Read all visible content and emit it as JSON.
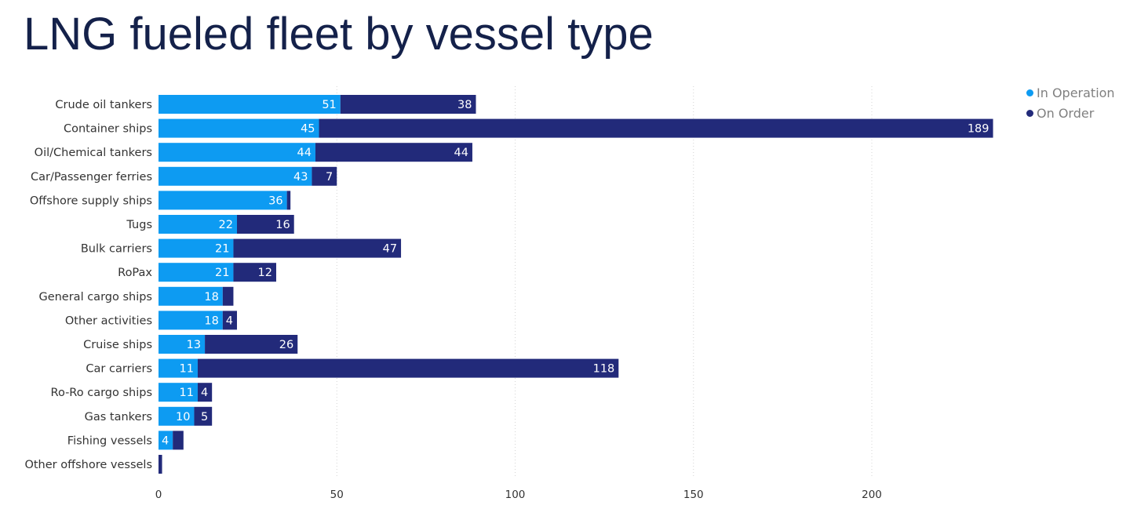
{
  "title": "LNG fueled fleet by vessel type",
  "colors": {
    "in_operation": "#0d9bf2",
    "on_order": "#222a7a",
    "grid": "#d4d4d4",
    "title": "#14214a"
  },
  "legend": [
    {
      "label": "In Operation",
      "color": "#0d9bf2"
    },
    {
      "label": "On Order",
      "color": "#222a7a"
    }
  ],
  "chart_data": {
    "type": "bar",
    "orientation": "horizontal",
    "stacked": true,
    "title": "LNG fueled fleet by vessel type",
    "xlabel": "",
    "ylabel": "",
    "xlim": [
      0,
      235
    ],
    "x_ticks": [
      0,
      50,
      100,
      150,
      200
    ],
    "grid": "vertical dotted",
    "legend_position": "top-right",
    "categories": [
      "Crude oil tankers",
      "Container ships",
      "Oil/Chemical tankers",
      "Car/Passenger ferries",
      "Offshore supply ships",
      "Tugs",
      "Bulk carriers",
      "RoPax",
      "General cargo ships",
      "Other activities",
      "Cruise ships",
      "Car carriers",
      "Ro-Ro cargo ships",
      "Gas tankers",
      "Fishing vessels",
      "Other offshore vessels"
    ],
    "series": [
      {
        "name": "In Operation",
        "values": [
          51,
          45,
          44,
          43,
          36,
          22,
          21,
          21,
          18,
          18,
          13,
          11,
          11,
          10,
          4,
          0
        ],
        "labels": [
          "51",
          "45",
          "44",
          "43",
          "36",
          "22",
          "21",
          "21",
          "18",
          "18",
          "13",
          "11",
          "11",
          "10",
          "4",
          ""
        ]
      },
      {
        "name": "On Order",
        "values": [
          38,
          189,
          44,
          7,
          1,
          16,
          47,
          12,
          3,
          4,
          26,
          118,
          4,
          5,
          3,
          1
        ],
        "labels": [
          "38",
          "189",
          "44",
          "7",
          "",
          "16",
          "47",
          "12",
          "",
          "4",
          "26",
          "118",
          "4",
          "5",
          "",
          ""
        ]
      }
    ]
  }
}
